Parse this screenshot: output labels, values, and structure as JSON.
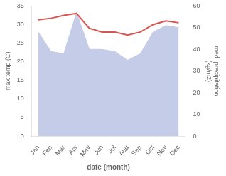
{
  "chart_data": {
    "type": "line",
    "categories": [
      "Jan",
      "Feb",
      "Mar",
      "Apr",
      "May",
      "Jun",
      "Jul",
      "Aug",
      "Sep",
      "Oct",
      "Nov",
      "Dec"
    ],
    "series": [
      {
        "type": "line",
        "color": "#d9534f",
        "values": [
          31.3,
          31.7,
          32.5,
          33.0,
          29.0,
          28.0,
          28.0,
          27.2,
          28.0,
          30.0,
          31.0,
          30.5
        ]
      },
      {
        "type": "area",
        "axis": "y2",
        "color": "#c5cce8",
        "values": [
          48,
          39,
          38,
          57,
          40,
          40,
          39,
          35,
          38,
          48,
          51,
          50
        ]
      }
    ],
    "xlabel": "date (month)",
    "ylabel": "max temp (C)",
    "y2label": "med. precipitation\n(kg/m2)",
    "ylim": [
      0,
      35
    ],
    "yticks": [
      0,
      5,
      10,
      15,
      20,
      25,
      30,
      35
    ],
    "y2lim": [
      0,
      60
    ],
    "y2ticks": [
      0,
      10,
      20,
      30,
      40,
      50,
      60
    ],
    "grid": false
  }
}
